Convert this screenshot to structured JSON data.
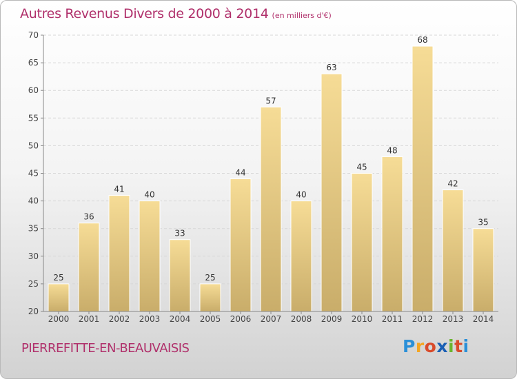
{
  "header": {
    "title": "Autres Revenus Divers de 2000 à 2014",
    "unit": "(en milliers d'€)"
  },
  "footer": {
    "commune": "PIERREFITTE-EN-BEAUVAISIS",
    "logo": {
      "text": "Proxiti",
      "letters": [
        "P",
        "r",
        "o",
        "x",
        "i",
        "t",
        "i"
      ],
      "colors": [
        "#2a8fd8",
        "#f5a623",
        "#d94b2b",
        "#1a5fb4",
        "#6ab42d",
        "#d94b2b",
        "#2a8fd8"
      ]
    }
  },
  "colors": {
    "title": "#b0306b",
    "bar_light": "#f6dc96",
    "bar_dark": "#c9ad6a"
  },
  "chart_data": {
    "type": "bar",
    "title": "Autres Revenus Divers de 2000 à 2014",
    "subtitle": "(en milliers d'€)",
    "categories": [
      "2000",
      "2001",
      "2002",
      "2003",
      "2004",
      "2005",
      "2006",
      "2007",
      "2008",
      "2009",
      "2010",
      "2011",
      "2012",
      "2013",
      "2014"
    ],
    "values": [
      25,
      36,
      41,
      40,
      33,
      25,
      44,
      57,
      40,
      63,
      45,
      48,
      68,
      42,
      35
    ],
    "ylim": [
      20,
      70
    ],
    "yticks": [
      20,
      25,
      30,
      35,
      40,
      45,
      50,
      55,
      60,
      65,
      70
    ],
    "grid": true,
    "data_labels": true
  }
}
